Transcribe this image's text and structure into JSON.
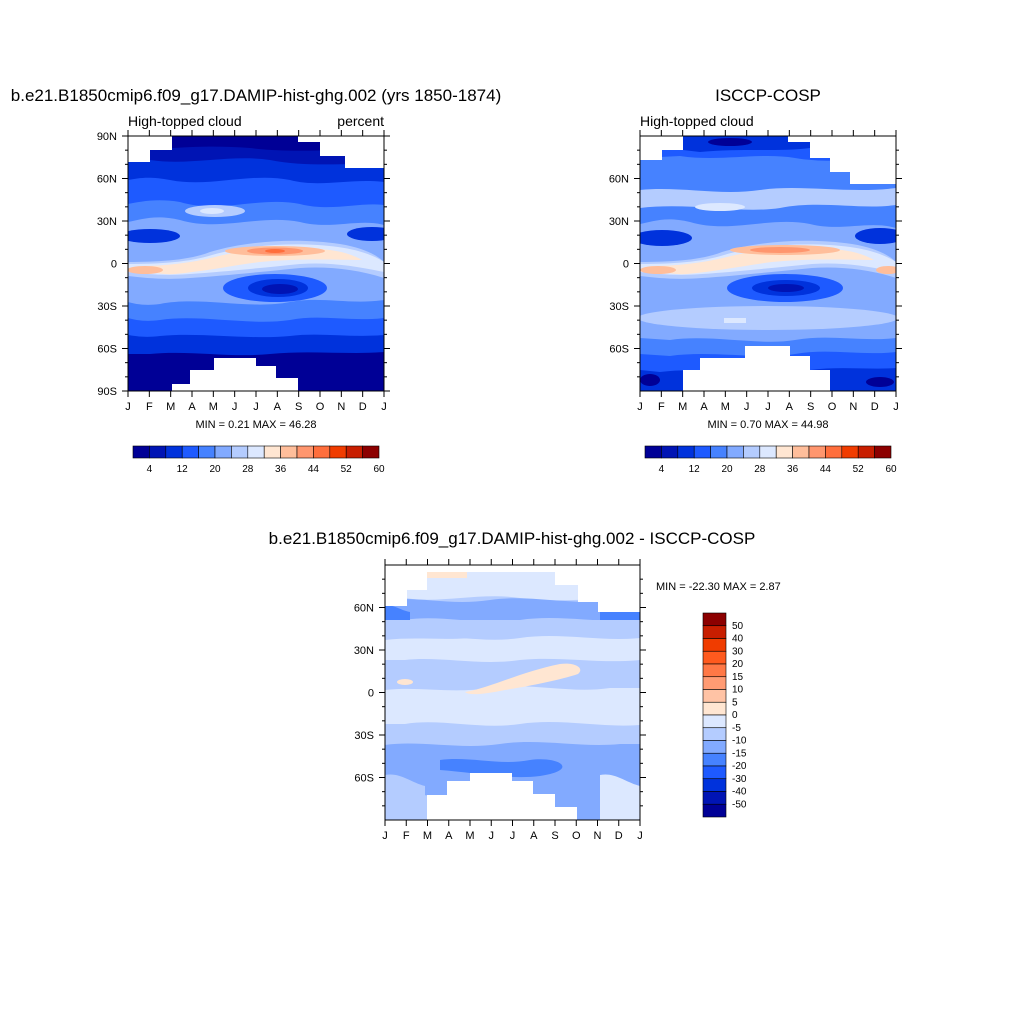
{
  "panels": [
    {
      "title": "b.e21.B1850cmip6.f09_g17.DAMIP-hist-ghg.002 (yrs 1850-1874)",
      "left_label": "High-topped cloud",
      "right_label": "percent",
      "stats": "MIN =   0.21 MAX =  46.28",
      "y_ticks": [
        "90N",
        "60N",
        "30N",
        "0",
        "30S",
        "60S",
        "90S"
      ],
      "x_ticks": [
        "J",
        "F",
        "M",
        "A",
        "M",
        "J",
        "J",
        "A",
        "S",
        "O",
        "N",
        "D",
        "J"
      ]
    },
    {
      "title": "ISCCP-COSP",
      "left_label": "High-topped cloud",
      "right_label": "",
      "stats": "MIN =   0.70 MAX =  44.98",
      "y_ticks": [
        "60N",
        "30N",
        "0",
        "30S",
        "60S"
      ],
      "x_ticks": [
        "J",
        "F",
        "M",
        "A",
        "M",
        "J",
        "J",
        "A",
        "S",
        "O",
        "N",
        "D",
        "J"
      ]
    },
    {
      "title": "b.e21.B1850cmip6.f09_g17.DAMIP-hist-ghg.002 - ISCCP-COSP",
      "left_label": "",
      "right_label": "",
      "stats": "MIN = -22.30 MAX =   2.87",
      "y_ticks": [
        "60N",
        "30N",
        "0",
        "30S",
        "60S"
      ],
      "x_ticks": [
        "J",
        "F",
        "M",
        "A",
        "M",
        "J",
        "J",
        "A",
        "S",
        "O",
        "N",
        "D",
        "J"
      ]
    }
  ],
  "colorbars": {
    "absolute": {
      "labels": [
        "4",
        "12",
        "20",
        "28",
        "36",
        "44",
        "52",
        "60"
      ],
      "colors": [
        "#000096",
        "#0014b4",
        "#0032dc",
        "#1e5aff",
        "#4682ff",
        "#82aaff",
        "#b4ccff",
        "#dce8ff",
        "#ffe6d2",
        "#ffbe9b",
        "#ff966e",
        "#ff6e3c",
        "#f03c00",
        "#c81e00",
        "#8c0000"
      ]
    },
    "difference": {
      "labels": [
        "50",
        "40",
        "30",
        "20",
        "15",
        "10",
        "5",
        "0",
        "-5",
        "-10",
        "-15",
        "-20",
        "-30",
        "-40",
        "-50"
      ],
      "colors": [
        "#8c0000",
        "#c81e00",
        "#f03c00",
        "#ff5a1e",
        "#ff7846",
        "#ff9b73",
        "#ffc3a5",
        "#ffe6d2",
        "#dce8ff",
        "#b4ccff",
        "#82aaff",
        "#4682ff",
        "#1e5aff",
        "#0032dc",
        "#0014b4",
        "#000096"
      ]
    }
  },
  "chart_data": [
    {
      "type": "heatmap",
      "title": "b.e21.B1850cmip6.f09_g17.DAMIP-hist-ghg.002 (yrs 1850-1874)",
      "variable": "High-topped cloud",
      "units": "percent",
      "x": [
        "J",
        "F",
        "M",
        "A",
        "M",
        "J",
        "J",
        "A",
        "S",
        "O",
        "N",
        "D",
        "J"
      ],
      "y_range": [
        -90,
        90
      ],
      "levels": [
        4,
        8,
        12,
        16,
        20,
        24,
        28,
        32,
        36,
        40,
        44,
        48,
        52,
        56,
        60
      ],
      "min": 0.21,
      "max": 46.28,
      "features": [
        {
          "lat": 8,
          "month": 6.7,
          "value": 46
        },
        {
          "lat": -3,
          "month": 0.3,
          "value": 34
        },
        {
          "lat": 20,
          "month": 0.5,
          "value": 9
        },
        {
          "lat": -17,
          "month": 7.2,
          "value": 8
        },
        {
          "lat": 37,
          "month": 4.0,
          "value": 22
        },
        {
          "lat": 40,
          "month": 9.5,
          "value": 18
        },
        {
          "lat": -75,
          "month": 6.5,
          "value": 2
        }
      ]
    },
    {
      "type": "heatmap",
      "title": "ISCCP-COSP",
      "variable": "High-topped cloud",
      "x": [
        "J",
        "F",
        "M",
        "A",
        "M",
        "J",
        "J",
        "A",
        "S",
        "O",
        "N",
        "D",
        "J"
      ],
      "y_range": [
        -90,
        90
      ],
      "levels": [
        4,
        8,
        12,
        16,
        20,
        24,
        28,
        32,
        36,
        40,
        44,
        48,
        52,
        56,
        60
      ],
      "min": 0.7,
      "max": 44.98,
      "features": [
        {
          "lat": 9,
          "month": 6.6,
          "value": 45
        },
        {
          "lat": -3,
          "month": 0.3,
          "value": 36
        },
        {
          "lat": 20,
          "month": 0.5,
          "value": 11
        },
        {
          "lat": -17,
          "month": 7.0,
          "value": 9
        },
        {
          "lat": 40,
          "month": 6.2,
          "value": 26
        },
        {
          "lat": -60,
          "month": 3.0,
          "value": 12
        },
        {
          "lat": -75,
          "month": 9.0,
          "value": 3
        }
      ]
    },
    {
      "type": "heatmap",
      "title": "b.e21.B1850cmip6.f09_g17.DAMIP-hist-ghg.002 - ISCCP-COSP",
      "x": [
        "J",
        "F",
        "M",
        "A",
        "M",
        "J",
        "J",
        "A",
        "S",
        "O",
        "N",
        "D",
        "J"
      ],
      "y_range": [
        -90,
        90
      ],
      "levels": [
        -50,
        -40,
        -30,
        -20,
        -15,
        -10,
        -5,
        0,
        5,
        10,
        15,
        20,
        30,
        40,
        50
      ],
      "min": -22.3,
      "max": 2.87,
      "features": [
        {
          "lat": 10,
          "month": 6.0,
          "value": 2
        },
        {
          "lat": -55,
          "month": 5.5,
          "value": -20
        },
        {
          "lat": 58,
          "month": 11.0,
          "value": -18
        },
        {
          "lat": -65,
          "month": 2.5,
          "value": -15
        },
        {
          "lat": 35,
          "month": 6.5,
          "value": -6
        }
      ]
    }
  ]
}
